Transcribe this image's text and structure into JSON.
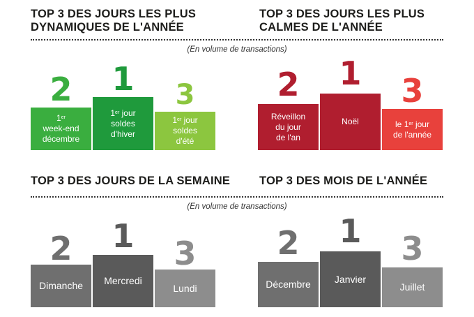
{
  "colors": {
    "green_dark": "#1f9a3c",
    "green_mid": "#3aae3f",
    "green_light": "#8cc63f",
    "red_dark": "#b01e2f",
    "red_light": "#e8413c",
    "gray_mid": "#6f6f6f",
    "gray_dark": "#5a5a5a",
    "gray_light": "#8d8d8d"
  },
  "subtitle": "(En volume de transactions)",
  "busy": {
    "title_line1": "TOP 3 DES JOURS LES PLUS",
    "title_line2": "DYNAMIQUES DE L'ANNÉE",
    "second": {
      "rank": "2",
      "sup": "er",
      "line1": "1",
      "line2": "week-end",
      "line3": "décembre"
    },
    "first": {
      "rank": "1",
      "sup": "er",
      "line1a": "1",
      "line1b": " jour",
      "line2": "soldes",
      "line3": "d'hiver"
    },
    "third": {
      "rank": "3",
      "sup": "er",
      "line1a": "1",
      "line1b": " jour",
      "line2": "soldes",
      "line3": "d'été"
    }
  },
  "calm": {
    "title_line1": "TOP 3 DES JOURS LES PLUS",
    "title_line2": "CALMES DE L'ANNÉE",
    "second": {
      "rank": "2",
      "line1": "Réveillon",
      "line2": "du jour",
      "line3": "de l'an"
    },
    "first": {
      "rank": "1",
      "label": "Noël"
    },
    "third": {
      "rank": "3",
      "sup": "er",
      "line1a": "le 1",
      "line1b": " jour",
      "line2": "de l'année"
    }
  },
  "week": {
    "title": "TOP 3 DES JOURS DE LA SEMAINE",
    "second": {
      "rank": "2",
      "label": "Dimanche"
    },
    "first": {
      "rank": "1",
      "label": "Mercredi"
    },
    "third": {
      "rank": "3",
      "label": "Lundi"
    }
  },
  "months": {
    "title": "TOP 3 DES MOIS DE L'ANNÉE",
    "second": {
      "rank": "2",
      "label": "Décembre"
    },
    "first": {
      "rank": "1",
      "label": "Janvier"
    },
    "third": {
      "rank": "3",
      "label": "Juillet"
    }
  }
}
